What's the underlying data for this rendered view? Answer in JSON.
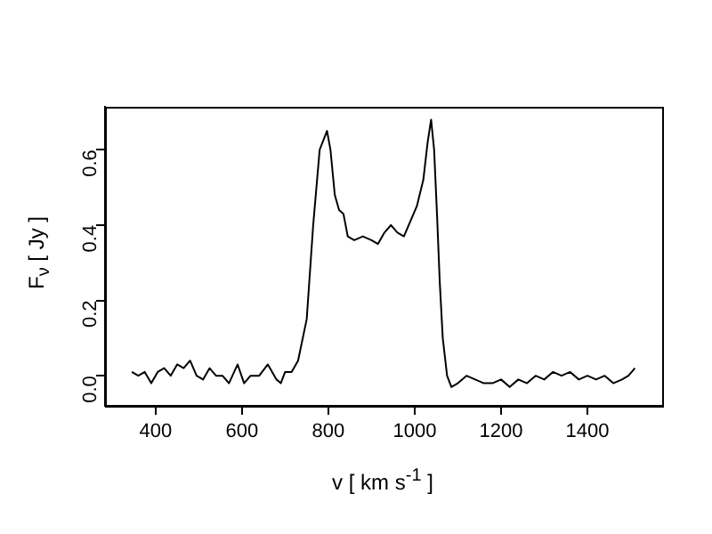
{
  "chart_data": {
    "type": "line",
    "xlabel": "v [ km s$^{-1}$ ]",
    "ylabel": "F$_{ν}$ [ Jy ]",
    "x": [
      345,
      360,
      375,
      390,
      405,
      420,
      435,
      450,
      465,
      480,
      495,
      510,
      525,
      540,
      555,
      570,
      590,
      605,
      620,
      640,
      660,
      680,
      690,
      700,
      715,
      730,
      750,
      765,
      780,
      797,
      805,
      815,
      825,
      835,
      845,
      860,
      880,
      900,
      915,
      930,
      945,
      960,
      975,
      990,
      1005,
      1020,
      1030,
      1038,
      1045,
      1052,
      1058,
      1065,
      1075,
      1085,
      1100,
      1120,
      1140,
      1160,
      1180,
      1200,
      1220,
      1240,
      1260,
      1280,
      1300,
      1320,
      1340,
      1360,
      1380,
      1400,
      1420,
      1440,
      1460,
      1480,
      1495,
      1510
    ],
    "series": [
      {
        "color": "#000000",
        "values": [
          0.01,
          0.0,
          0.01,
          -0.02,
          0.01,
          0.02,
          0.0,
          0.03,
          0.02,
          0.04,
          0.0,
          -0.01,
          0.02,
          0.0,
          0.0,
          -0.02,
          0.03,
          -0.02,
          0.0,
          0.0,
          0.03,
          -0.01,
          -0.02,
          0.01,
          0.01,
          0.04,
          0.15,
          0.4,
          0.6,
          0.65,
          0.6,
          0.48,
          0.44,
          0.43,
          0.37,
          0.36,
          0.37,
          0.36,
          0.35,
          0.38,
          0.4,
          0.38,
          0.37,
          0.41,
          0.45,
          0.52,
          0.62,
          0.68,
          0.6,
          0.42,
          0.25,
          0.1,
          0.0,
          -0.03,
          -0.02,
          0.0,
          -0.01,
          -0.02,
          -0.02,
          -0.01,
          -0.03,
          -0.01,
          -0.02,
          0.0,
          -0.01,
          0.01,
          0.0,
          0.01,
          -0.01,
          0.0,
          -0.01,
          0.0,
          -0.02,
          -0.01,
          0.0,
          0.02
        ]
      }
    ],
    "xlim": [
      283,
      1573
    ],
    "ylim": [
      -0.08,
      0.714
    ],
    "xticks": [
      400,
      600,
      800,
      1000,
      1200,
      1400
    ],
    "yticks": [
      {
        "value": 0,
        "label": "0.0"
      },
      {
        "value": 0.2,
        "label": "0.2"
      },
      {
        "value": 0.4,
        "label": "0.4"
      },
      {
        "value": 0.6,
        "label": "0.6"
      }
    ],
    "grid": false,
    "legend": false,
    "marker": "none",
    "line_style": "solid"
  }
}
